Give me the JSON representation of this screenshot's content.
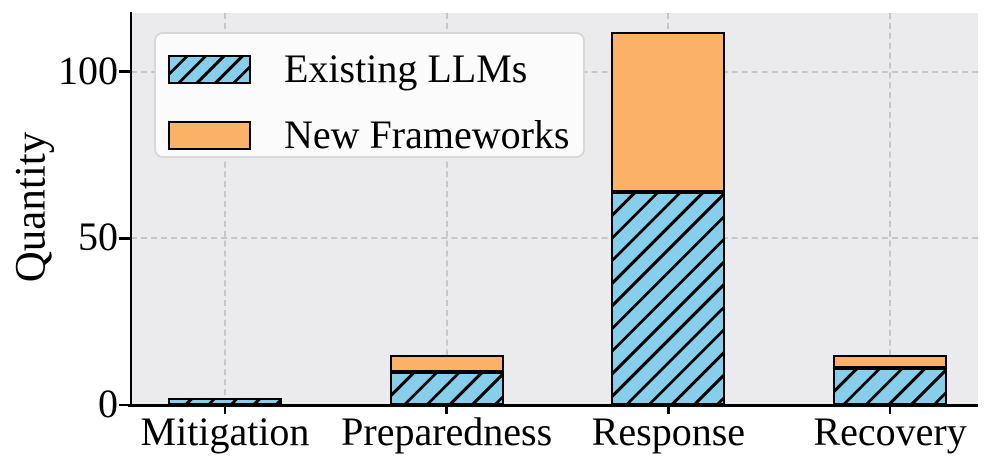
{
  "chart_data": {
    "type": "bar",
    "stacked": true,
    "title": "",
    "categories": [
      "Mitigation",
      "Preparedness",
      "Response",
      "Recovery"
    ],
    "series": [
      {
        "name": "Existing LLMs",
        "values": [
          2,
          10,
          64,
          11
        ],
        "color": "#87CEEB",
        "hatch": "///",
        "edgecolor": "#000000"
      },
      {
        "name": "New Frameworks",
        "values": [
          0,
          5,
          48,
          4
        ],
        "color": "#FBB266",
        "hatch": "",
        "edgecolor": "#000000"
      }
    ],
    "totals": [
      2,
      15,
      112,
      15
    ],
    "xlabel": "",
    "ylabel": "Quantity",
    "yticks": [
      0,
      50,
      100
    ],
    "ylim": [
      0,
      117.6
    ],
    "grid": "dashed, horizontal at yticks and vertical at category centers",
    "legend_position": "upper left"
  },
  "colors": {
    "figure_bg": "#ffffff",
    "plot_bg": "#ebebee",
    "grid": "#c6c6c6",
    "axis": "#000000",
    "text": "#000000",
    "legend_bg": "#fbfbfb",
    "legend_border": "#d8d8d8",
    "hatch": "#000000"
  }
}
